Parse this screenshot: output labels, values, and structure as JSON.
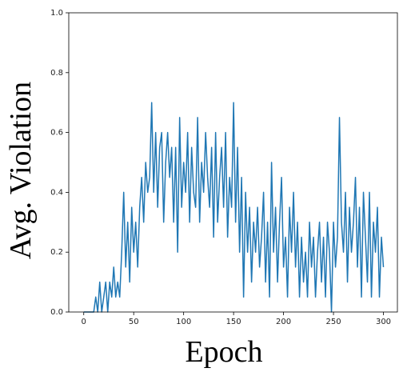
{
  "chart_data": {
    "type": "line",
    "xlabel": "Epoch",
    "ylabel": "Avg. Violation",
    "x": [
      0,
      2,
      4,
      6,
      8,
      10,
      12,
      14,
      16,
      18,
      20,
      22,
      24,
      26,
      28,
      30,
      32,
      34,
      36,
      38,
      40,
      42,
      44,
      46,
      48,
      50,
      52,
      54,
      56,
      58,
      60,
      62,
      64,
      66,
      68,
      70,
      72,
      74,
      76,
      78,
      80,
      82,
      84,
      86,
      88,
      90,
      92,
      94,
      96,
      98,
      100,
      102,
      104,
      106,
      108,
      110,
      112,
      114,
      116,
      118,
      120,
      122,
      124,
      126,
      128,
      130,
      132,
      134,
      136,
      138,
      140,
      142,
      144,
      146,
      148,
      150,
      152,
      154,
      156,
      158,
      160,
      162,
      164,
      166,
      168,
      170,
      172,
      174,
      176,
      178,
      180,
      182,
      184,
      186,
      188,
      190,
      192,
      194,
      196,
      198,
      200,
      202,
      204,
      206,
      208,
      210,
      212,
      214,
      216,
      218,
      220,
      222,
      224,
      226,
      228,
      230,
      232,
      234,
      236,
      238,
      240,
      242,
      244,
      246,
      248,
      250,
      252,
      254,
      256,
      258,
      260,
      262,
      264,
      266,
      268,
      270,
      272,
      274,
      276,
      278,
      280,
      282,
      284,
      286,
      288,
      290,
      292,
      294,
      296,
      298,
      300
    ],
    "series": [
      {
        "color": "#1f77b4",
        "values": [
          0,
          0,
          0,
          0,
          0,
          0,
          0.05,
          0,
          0.1,
          0,
          0.05,
          0.1,
          0,
          0.1,
          0.05,
          0.15,
          0.05,
          0.1,
          0.05,
          0.2,
          0.4,
          0.15,
          0.3,
          0.1,
          0.35,
          0.2,
          0.3,
          0.15,
          0.35,
          0.45,
          0.3,
          0.5,
          0.4,
          0.45,
          0.7,
          0.4,
          0.6,
          0.35,
          0.55,
          0.6,
          0.3,
          0.5,
          0.6,
          0.45,
          0.55,
          0.3,
          0.55,
          0.2,
          0.65,
          0.35,
          0.5,
          0.4,
          0.6,
          0.3,
          0.55,
          0.4,
          0.35,
          0.65,
          0.3,
          0.5,
          0.4,
          0.6,
          0.45,
          0.35,
          0.55,
          0.25,
          0.6,
          0.3,
          0.45,
          0.55,
          0.35,
          0.6,
          0.25,
          0.45,
          0.35,
          0.7,
          0.3,
          0.55,
          0.2,
          0.45,
          0.05,
          0.4,
          0.2,
          0.35,
          0.1,
          0.3,
          0.2,
          0.35,
          0.15,
          0.25,
          0.4,
          0.1,
          0.3,
          0.05,
          0.5,
          0.2,
          0.35,
          0.1,
          0.3,
          0.45,
          0.15,
          0.25,
          0.05,
          0.35,
          0.2,
          0.4,
          0.15,
          0.3,
          0.05,
          0.25,
          0.1,
          0.2,
          0.05,
          0.3,
          0.15,
          0.25,
          0.05,
          0.2,
          0.3,
          0.1,
          0.25,
          0.05,
          0.3,
          0.2,
          0,
          0.3,
          0.15,
          0.25,
          0.65,
          0.3,
          0.2,
          0.4,
          0.1,
          0.35,
          0.2,
          0.3,
          0.45,
          0.15,
          0.35,
          0.05,
          0.4,
          0.25,
          0.1,
          0.4,
          0.05,
          0.3,
          0.2,
          0.35,
          0.05,
          0.25,
          0.15
        ]
      }
    ],
    "xlim": [
      -15,
      314
    ],
    "ylim": [
      0,
      1
    ],
    "xticks": [
      0,
      50,
      100,
      150,
      200,
      250,
      300
    ],
    "yticks": [
      {
        "value": 0,
        "label": "0.0"
      },
      0.2,
      0.4,
      0.6,
      0.8,
      {
        "value": 1,
        "label": "1.0"
      }
    ]
  }
}
